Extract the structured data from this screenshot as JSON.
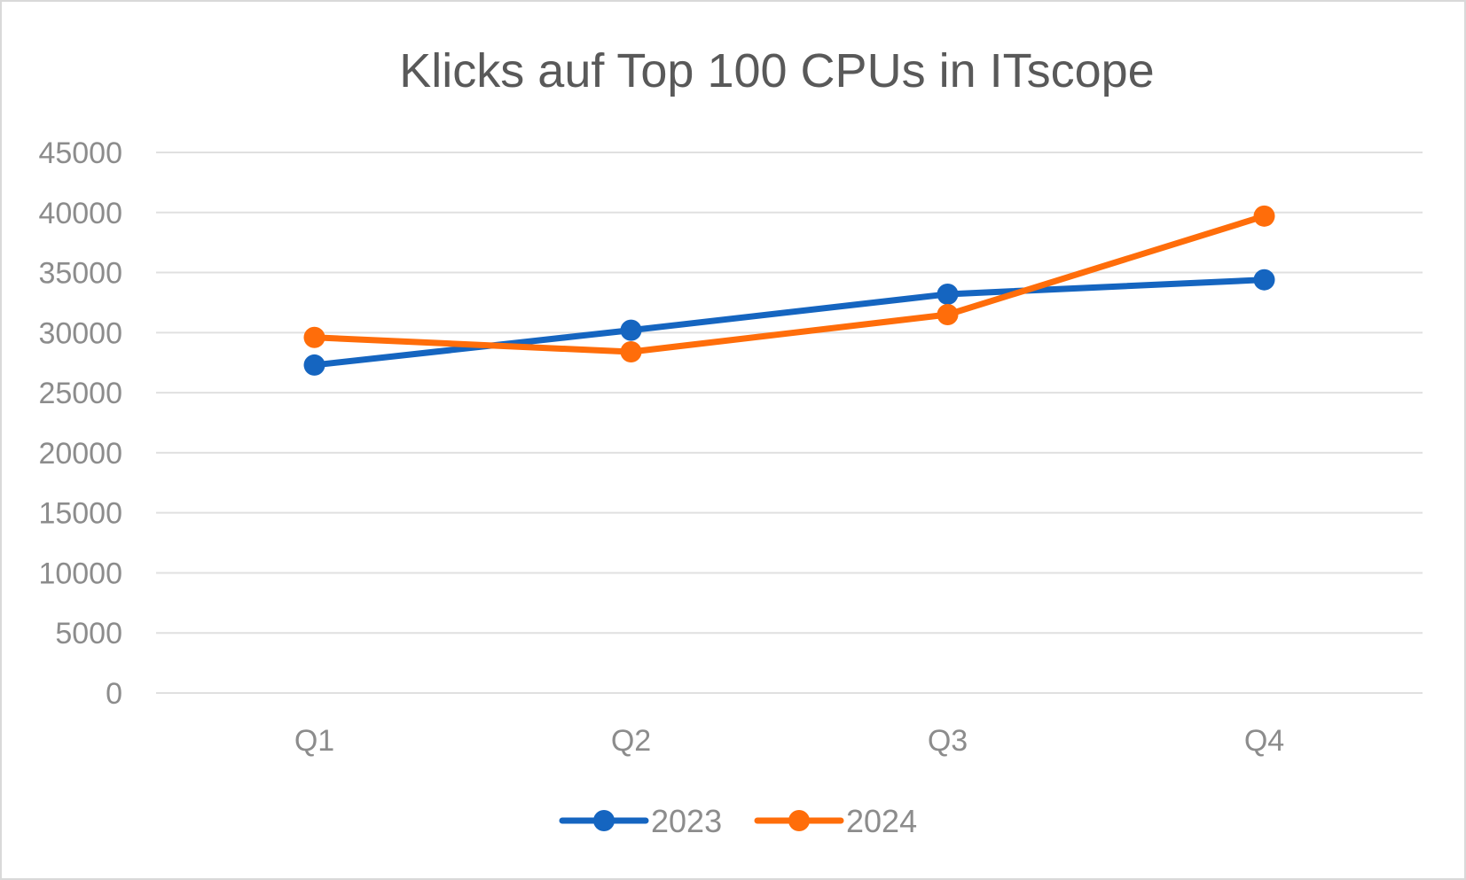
{
  "chart_data": {
    "type": "line",
    "title": "Klicks auf Top 100 CPUs in ITscope",
    "xlabel": "",
    "ylabel": "",
    "categories": [
      "Q1",
      "Q2",
      "Q3",
      "Q4"
    ],
    "ylim": [
      0,
      45000
    ],
    "yticks": [
      0,
      5000,
      10000,
      15000,
      20000,
      25000,
      30000,
      35000,
      40000,
      45000
    ],
    "grid": true,
    "legend_position": "bottom",
    "series": [
      {
        "name": "2023",
        "color": "#1565c0",
        "values": [
          27300,
          30200,
          33200,
          34400
        ]
      },
      {
        "name": "2024",
        "color": "#ff6d0a",
        "values": [
          29600,
          28400,
          31500,
          39700
        ]
      }
    ]
  }
}
